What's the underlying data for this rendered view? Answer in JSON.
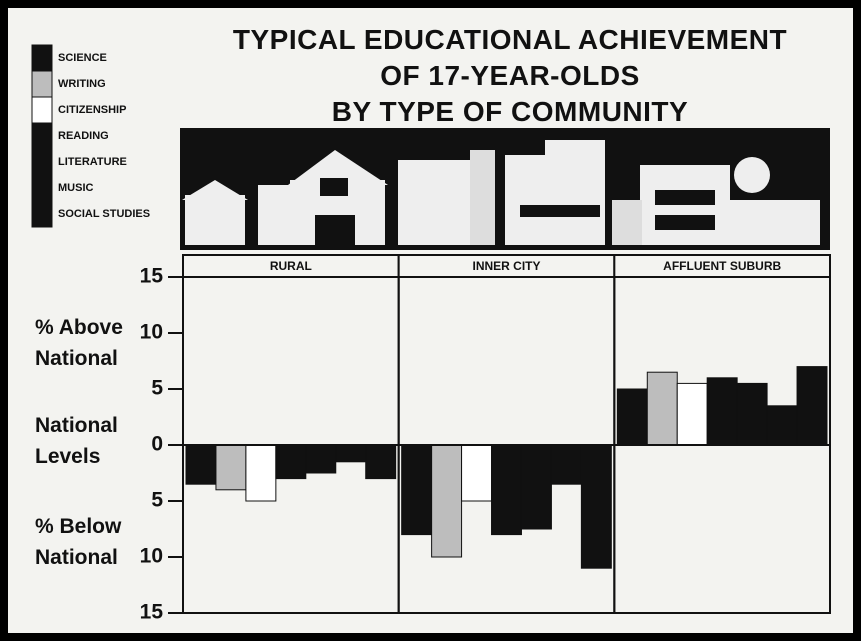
{
  "chart_data": {
    "type": "bar",
    "title": [
      "TYPICAL EDUCATIONAL ACHIEVEMENT",
      "OF 17-YEAR-OLDS",
      "BY TYPE OF COMMUNITY"
    ],
    "axis_labels": [
      "% Above National",
      "National Levels",
      "% Below National"
    ],
    "categories": [
      "RURAL",
      "INNER CITY",
      "AFFLUENT SUBURB"
    ],
    "series": [
      {
        "name": "SCIENCE",
        "color": "#111111",
        "values": [
          -3.5,
          -8,
          5
        ]
      },
      {
        "name": "WRITING",
        "color": "#bdbdbd",
        "values": [
          -4,
          -10,
          6.5
        ]
      },
      {
        "name": "CITIZENSHIP",
        "color": "#ffffff",
        "values": [
          -5,
          -5,
          5.5
        ]
      },
      {
        "name": "READING",
        "color": "#111111",
        "values": [
          -3,
          -8,
          6
        ]
      },
      {
        "name": "LITERATURE",
        "color": "#111111",
        "values": [
          -2.5,
          -7.5,
          5.5
        ]
      },
      {
        "name": "MUSIC",
        "color": "#111111",
        "values": [
          -1.5,
          -3.5,
          3.5
        ]
      },
      {
        "name": "SOCIAL STUDIES",
        "color": "#111111",
        "values": [
          -3,
          -11,
          7
        ]
      }
    ],
    "ylim": [
      -15,
      15
    ],
    "yticks": [
      {
        "value": -15,
        "label": "15"
      },
      {
        "value": -10,
        "label": "10"
      },
      {
        "value": -5,
        "label": "5"
      },
      0,
      5,
      10,
      15
    ]
  }
}
